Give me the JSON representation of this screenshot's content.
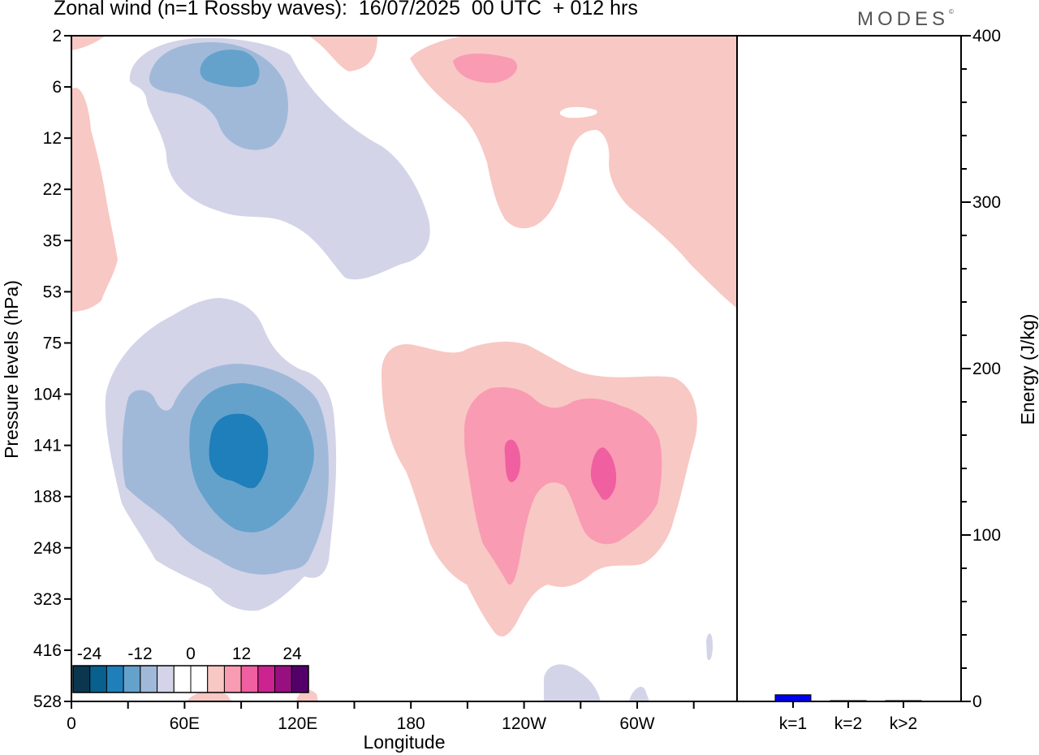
{
  "title": "Zonal wind (n=1 Rossby waves):  16/07/2025  00 UTC  + 012 hrs",
  "brand": "MODES",
  "brand_mark": "©",
  "chart_data": [
    {
      "type": "heatmap",
      "title": "Zonal wind (n=1 Rossby waves):  16/07/2025  00 UTC  + 012 hrs",
      "xlabel": "Longitude",
      "ylabel": "Pressure levels (hPa)",
      "x_ticks": [
        "0",
        "60E",
        "120E",
        "180",
        "120W",
        "60W"
      ],
      "y_ticks": [
        "2",
        "6",
        "12",
        "22",
        "35",
        "53",
        "75",
        "104",
        "141",
        "188",
        "248",
        "323",
        "416",
        "528"
      ],
      "colorbar": {
        "labels": [
          "-24",
          "-12",
          "0",
          "12",
          "24"
        ],
        "colors": [
          "#0a3650",
          "#08608f",
          "#1e7fba",
          "#64a2cc",
          "#a1b9d9",
          "#d3d4e8",
          "#ffffff",
          "#ffffff",
          "#f8c8c4",
          "#f99bb3",
          "#f05fa0",
          "#cd2390",
          "#980f7f",
          "#54006b"
        ]
      },
      "features": [
        {
          "name": "negative centre near 60E-90E, 2-12 hPa",
          "peak_value": -12
        },
        {
          "name": "negative centre near 90E, 104-248 hPa",
          "peak_value": -20
        },
        {
          "name": "positive centre near 120W, 104-248 hPa",
          "peak_value": 16
        },
        {
          "name": "positive centre near 75W, 141-188 hPa",
          "peak_value": 16
        },
        {
          "name": "positive region near 140W, 2-12 hPa",
          "peak_value": 8
        }
      ]
    },
    {
      "type": "bar",
      "ylabel": "Energy (J/kg)",
      "ylim": [
        0,
        400
      ],
      "y_ticks": [
        "0",
        "100",
        "200",
        "300",
        "400"
      ],
      "categories": [
        "k=1",
        "k=2",
        "k>2"
      ],
      "values": [
        4,
        0.3,
        0.4
      ],
      "colors": {
        "k=1": "#0000ee"
      }
    }
  ]
}
